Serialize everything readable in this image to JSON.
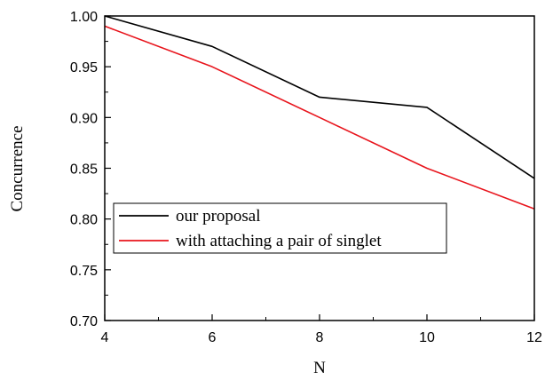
{
  "chart_data": {
    "type": "line",
    "xlabel": "N",
    "ylabel": "Concurrence",
    "xlim": [
      4,
      12
    ],
    "ylim": [
      0.7,
      1.0
    ],
    "x_ticks": [
      4,
      6,
      8,
      10,
      12
    ],
    "x_tick_labels": [
      "4",
      "6",
      "8",
      "10",
      "12"
    ],
    "y_ticks": [
      0.7,
      0.75,
      0.8,
      0.85,
      0.9,
      0.95,
      1.0
    ],
    "y_tick_labels": [
      "0.70",
      "0.75",
      "0.80",
      "0.85",
      "0.90",
      "0.95",
      "1.00"
    ],
    "grid": false,
    "legend_position": "center-left",
    "series": [
      {
        "name": "our proposal",
        "color": "#000000",
        "x": [
          4,
          6,
          8,
          10,
          12
        ],
        "y": [
          1.0,
          0.97,
          0.92,
          0.91,
          0.84
        ]
      },
      {
        "name": "with attaching a pair of singlet",
        "color": "#e8141c",
        "x": [
          4,
          6,
          8,
          10,
          12
        ],
        "y": [
          0.99,
          0.95,
          0.9,
          0.85,
          0.81
        ]
      }
    ]
  }
}
